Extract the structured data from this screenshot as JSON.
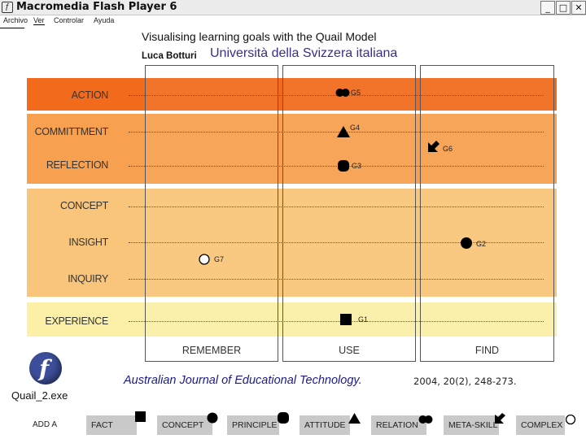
{
  "window": {
    "title": "Macromedia Flash Player 6",
    "minimize_glyph": "_",
    "maximize_glyph": "□",
    "close_glyph": "✕"
  },
  "menu": {
    "items": [
      "Archivo",
      "Ver",
      "Controlar",
      "Ayuda"
    ]
  },
  "heading": {
    "title": "Visualising learning goals with the Quail Model",
    "author": "Luca Botturi",
    "university": "Università della Svizzera italiana"
  },
  "rows": {
    "action": "ACTION",
    "commitment": "COMMITTMENT",
    "reflection": "REFLECTION",
    "concept": "CONCEPT",
    "insight": "INSIGHT",
    "inquiry": "INQUIRY",
    "experience": "EXPERIENCE"
  },
  "columns": {
    "remember": "REMEMBER",
    "use": "USE",
    "find": "FIND"
  },
  "goals": {
    "g1": "G1",
    "g2": "G2",
    "g3": "G3",
    "g4": "G4",
    "g5": "G5",
    "g6": "G6",
    "g7": "G7"
  },
  "footer": {
    "file_name": "Quail_2.exe",
    "citation": "Australian Journal of Educational Technology.",
    "citation_detail": "2004, 20(2), 248-273."
  },
  "legend": {
    "add": "ADD A",
    "fact": "FACT",
    "concept": "CONCEPT",
    "principle": "PRINCIPLE",
    "attitude": "ATTITUDE",
    "relation": "RELATION",
    "meta_skill": "META-SKILL",
    "complex": "COMPLEX"
  },
  "colors": {
    "band_action": "#f26b1d",
    "band_reflection": "#f7a04f",
    "band_insight": "#f9c57a",
    "band_experience": "#fbf0a6",
    "university_text": "#3a2e8f",
    "citation_text": "#1a1a8a",
    "legend_bg": "#c9c9c9"
  }
}
